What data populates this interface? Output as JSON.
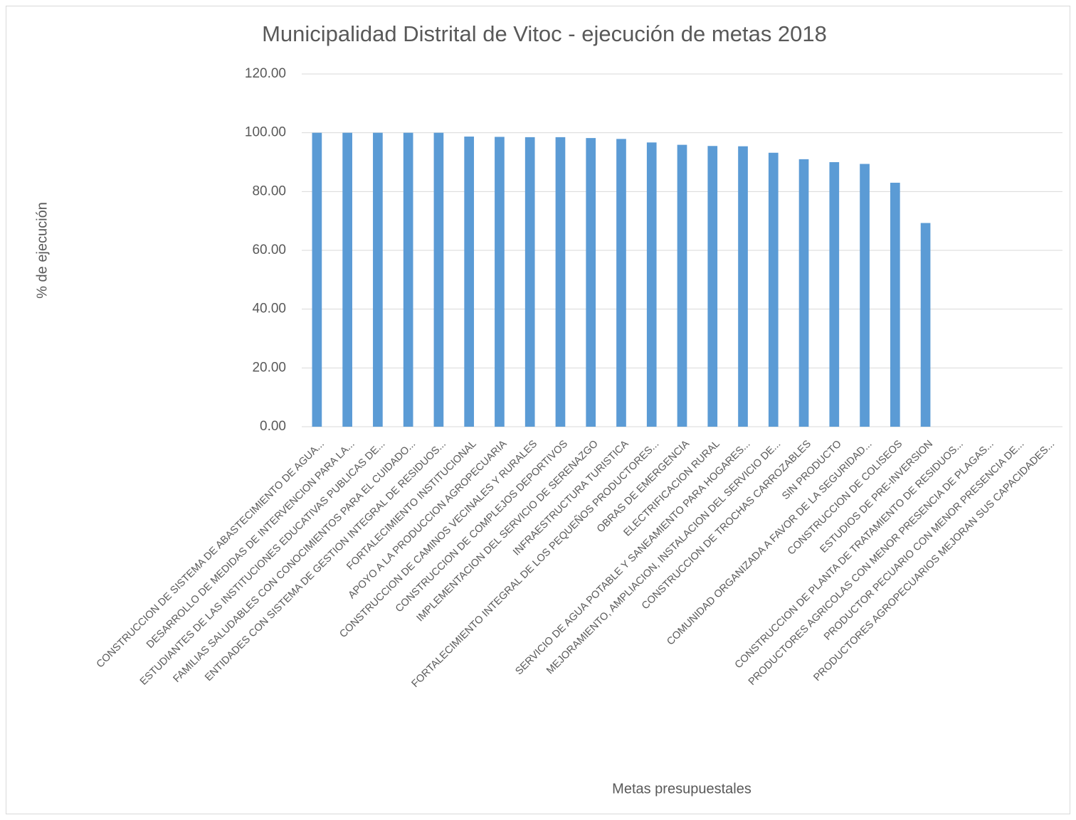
{
  "chart_data": {
    "type": "bar",
    "title": "Municipalidad Distrital de Vitoc - ejecución de metas 2018",
    "x_label": "Metas presupuestales",
    "y_label": "% de ejecución",
    "categories": [
      "CONSTRUCCION DE SISTEMA DE ABASTECIMIENTO DE AGUA...",
      "DESARROLLO DE MEDIDAS DE INTERVENCION PARA LA...",
      "ESTUDIANTES DE LAS INSTITUCIONES EDUCATIVAS PUBLICAS DE...",
      "FAMILIAS SALUDABLES CON CONOCIMIENTOS PARA EL CUIDADO...",
      "ENTIDADES CON SISTEMA DE GESTION INTEGRAL DE RESIDUOS...",
      "FORTALECIMIENTO INSTITUCIONAL",
      "APOYO A LA PRODUCCION AGROPECUARIA",
      "CONSTRUCCION DE CAMINOS VECINALES Y RURALES",
      "CONSTRUCCION DE COMPLEJOS DEPORTIVOS",
      "IMPLEMENTACION DEL SERVICIO DE SERENAZGO",
      "INFRAESTRUCTURA TURISTICA",
      "FORTALECIMIENTO INTEGRAL DE LOS PEQUEÑOS PRODUCTORES...",
      "OBRAS DE EMERGENCIA",
      "ELECTRIFICACION RURAL",
      "SERVICIO DE AGUA POTABLE Y SANEAMIENTO PARA HOGARES...",
      "MEJORAMIENTO, AMPLIACION, INSTALACION DEL SERVICIO DE...",
      "CONSTRUCCION DE TROCHAS CARROZABLES",
      "SIN PRODUCTO",
      "COMUNIDAD ORGANIZADA A FAVOR DE LA SEGURIDAD...",
      "CONSTRUCCION DE COLISEOS",
      "ESTUDIOS DE PRE-INVERSION",
      "CONSTRUCCION DE PLANTA DE TRATAMIENTO DE RESIDUOS...",
      "PRODUCTORES AGRICOLAS CON MENOR PRESENCIA DE PLAGAS...",
      "PRODUCTOR PECUARIO CON MENOR PRESENCIA DE...",
      "PRODUCTORES AGROPECUARIOS MEJORAN SUS CAPACIDADES..."
    ],
    "values": [
      100,
      100,
      100,
      100,
      100,
      98.7,
      98.6,
      98.5,
      98.5,
      98.2,
      97.9,
      96.7,
      95.9,
      95.5,
      95.4,
      93.2,
      91,
      90,
      89.4,
      83,
      69.3,
      null,
      null,
      null,
      null
    ],
    "color": "#5b9bd5",
    "ylim": [
      0,
      120
    ],
    "yticks": [
      {
        "value": 0,
        "label": "0.00"
      },
      {
        "value": 20,
        "label": "20.00"
      },
      {
        "value": 40,
        "label": "40.00"
      },
      {
        "value": 60,
        "label": "60.00"
      },
      {
        "value": 80,
        "label": "80.00"
      },
      {
        "value": 100,
        "label": "100.00"
      },
      {
        "value": 120,
        "label": "120.00"
      }
    ],
    "grid": true
  }
}
